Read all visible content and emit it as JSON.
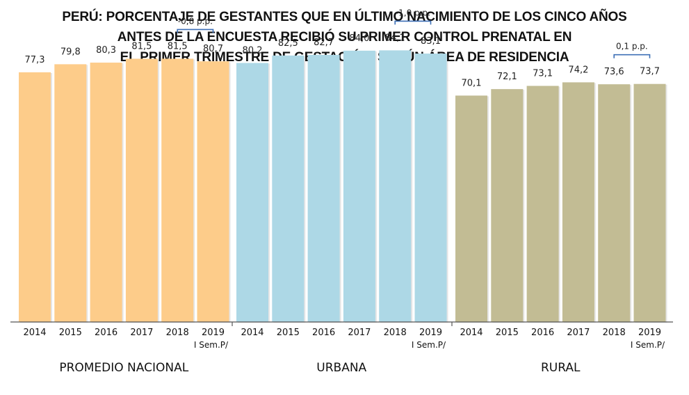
{
  "title_lines": [
    "PERÚ: PORCENTAJE DE GESTANTES QUE EN ÚLTIMO NACIMIENTO DE LOS CINCO AÑOS",
    "ANTES DE LA ENCUESTA RECIBIÓ SU PRIMER CONTROL PRENATAL EN",
    "EL PRIMER TRIMESTRE DE GESTACIÓN, SEGÚN ÁREA DE RESIDENCIA"
  ],
  "chart_data": {
    "type": "bar",
    "ylim": [
      0,
      90
    ],
    "grid": false,
    "x_sublabel": "I Sem.P/",
    "groups": [
      {
        "name": "PROMEDIO NACIONAL",
        "color": "#FDCC8A",
        "categories": [
          "2014",
          "2015",
          "2016",
          "2017",
          "2018",
          "2019"
        ],
        "values": [
          77.3,
          79.8,
          80.3,
          81.5,
          81.5,
          80.7
        ],
        "labels": [
          "77,3",
          "79,8",
          "80,3",
          "81,5",
          "81,5",
          "80,7"
        ],
        "annotation": "-0,8 p.p."
      },
      {
        "name": "URBANA",
        "color": "#ADD8E6",
        "categories": [
          "2014",
          "2015",
          "2016",
          "2017",
          "2018",
          "2019"
        ],
        "values": [
          80.2,
          82.5,
          82.7,
          84.0,
          84.1,
          83.1
        ],
        "labels": [
          "80,2",
          "82,5",
          "82,7",
          "84,0",
          "84,1",
          "83,1"
        ],
        "annotation": "-1,0 p.p."
      },
      {
        "name": "RURAL",
        "color": "#C2BC94",
        "categories": [
          "2014",
          "2015",
          "2016",
          "2017",
          "2018",
          "2019"
        ],
        "values": [
          70.1,
          72.1,
          73.1,
          74.2,
          73.6,
          73.7
        ],
        "labels": [
          "70,1",
          "72,1",
          "73,1",
          "74,2",
          "73,6",
          "73,7"
        ],
        "annotation": "0,1 p.p."
      }
    ]
  }
}
